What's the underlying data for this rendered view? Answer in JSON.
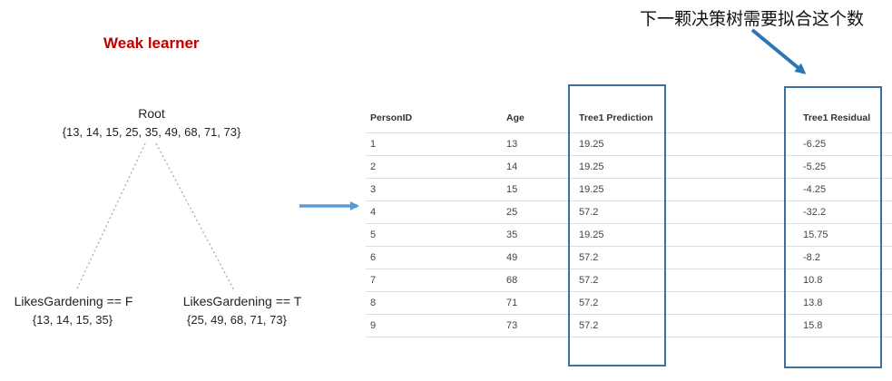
{
  "title": "Weak learner",
  "annotation": "下一颗决策树需要拟合这个数",
  "tree": {
    "root": {
      "label": "Root",
      "set": "{13, 14, 15, 25, 35, 49, 68, 71, 73}"
    },
    "left": {
      "label": "LikesGardening == F",
      "set": "{13, 14, 15, 35}"
    },
    "right": {
      "label": "LikesGardening == T",
      "set": "{25, 49, 68, 71, 73}"
    }
  },
  "table": {
    "headers": [
      "PersonID",
      "Age",
      "Tree1 Prediction",
      "Tree1 Residual"
    ],
    "rows": [
      [
        "1",
        "13",
        "19.25",
        "-6.25"
      ],
      [
        "2",
        "14",
        "19.25",
        "-5.25"
      ],
      [
        "3",
        "15",
        "19.25",
        "-4.25"
      ],
      [
        "4",
        "25",
        "57.2",
        "-32.2"
      ],
      [
        "5",
        "35",
        "19.25",
        "15.75"
      ],
      [
        "6",
        "49",
        "57.2",
        "-8.2"
      ],
      [
        "7",
        "68",
        "57.2",
        "10.8"
      ],
      [
        "8",
        "71",
        "57.2",
        "13.8"
      ],
      [
        "9",
        "73",
        "57.2",
        "15.8"
      ]
    ]
  },
  "colors": {
    "title": "#c00000",
    "arrow": "#5b9bd5",
    "box": "#3f6e9e",
    "edge": "#aaaaaa"
  }
}
